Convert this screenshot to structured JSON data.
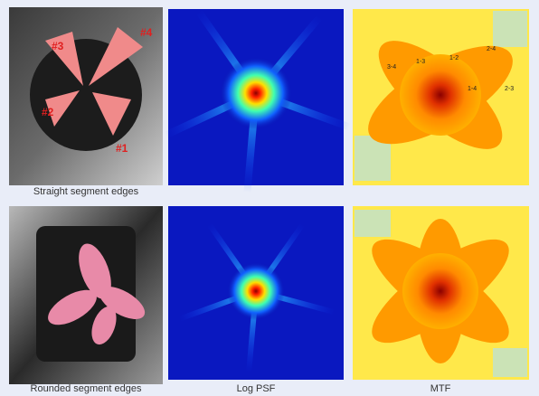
{
  "rows": [
    {
      "caption": "Straight segment edges",
      "segment_labels": [
        "#3",
        "#4",
        "#2",
        "#1"
      ],
      "mtf_labels": [
        "3-4",
        "1-3",
        "1-2",
        "2-4",
        "1-4",
        "2-3"
      ]
    },
    {
      "caption": "Rounded segment edges"
    }
  ],
  "columns": {
    "psf": "Log PSF",
    "mtf": "MTF"
  }
}
